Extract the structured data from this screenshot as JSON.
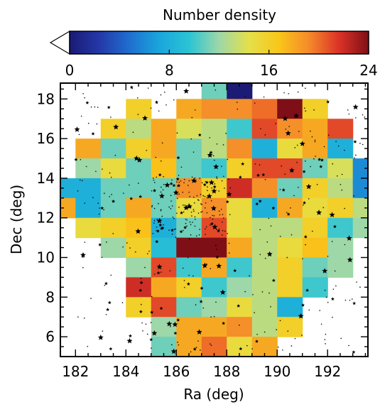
{
  "chart_data": {
    "type": "heatmap",
    "title": "",
    "xlabel": "Ra (deg)",
    "ylabel": "Dec (deg)",
    "xlim": [
      181.4,
      193.6
    ],
    "ylim": [
      5.0,
      18.8
    ],
    "xticks": [
      182,
      184,
      186,
      188,
      190,
      192
    ],
    "yticks": [
      6,
      8,
      10,
      12,
      14,
      16,
      18
    ],
    "grid": false,
    "colorbar": {
      "label": "Number density",
      "min": 0,
      "max": 24,
      "ticks": [
        0,
        8,
        16,
        24
      ],
      "colormap": "jet-like",
      "position": "top",
      "stops": [
        "#1b1a74",
        "#2438a8",
        "#1f6fd0",
        "#19a6dc",
        "#2bc4d4",
        "#9ed7a8",
        "#e4e04a",
        "#f9c619",
        "#f58a2a",
        "#dc3328",
        "#7f0f16"
      ]
    },
    "bins": {
      "ra_start": 181.4,
      "ra_width": 1.017,
      "dec_start": 18.8,
      "dec_height": 1.0,
      "rows": [
        [
          null,
          null,
          null,
          null,
          null,
          null,
          null,
          null,
          null,
          null,
          null,
          null
        ],
        [
          null,
          null,
          null,
          null,
          null,
          null,
          null,
          null,
          null,
          null,
          null,
          null
        ],
        [
          null,
          null,
          null,
          null,
          null,
          null,
          null,
          null,
          null,
          null,
          null,
          null
        ],
        [
          null,
          null,
          null,
          null,
          null,
          null,
          null,
          null,
          null,
          null,
          null,
          null
        ],
        [
          null,
          null,
          null,
          null,
          null,
          null,
          null,
          null,
          null,
          null,
          null,
          null
        ],
        [
          null,
          null,
          null,
          null,
          null,
          null,
          null,
          null,
          null,
          null,
          null,
          null
        ],
        [
          null,
          null,
          null,
          null,
          null,
          null,
          null,
          null,
          null,
          null,
          null,
          null
        ],
        [
          null,
          null,
          null,
          null,
          null,
          null,
          null,
          null,
          null,
          null,
          null,
          null
        ],
        [
          null,
          null,
          null,
          null,
          null,
          null,
          null,
          null,
          null,
          null,
          null,
          null
        ],
        [
          null,
          null,
          null,
          null,
          null,
          null,
          null,
          null,
          null,
          null,
          null,
          null
        ],
        [
          null,
          null,
          null,
          null,
          null,
          null,
          null,
          null,
          null,
          null,
          null,
          null
        ],
        [
          null,
          null,
          null,
          null,
          null,
          null,
          null,
          null,
          null,
          null,
          null,
          null
        ],
        [
          null,
          null,
          null,
          null,
          null,
          null,
          null,
          null,
          null,
          null,
          null,
          null
        ],
        [
          null,
          null,
          null,
          null,
          null,
          null,
          null,
          null,
          null,
          null,
          null,
          null
        ]
      ]
    },
    "cells": [
      [
        187.5,
        18.5,
        11
      ],
      [
        188.5,
        18.5,
        0
      ],
      [
        184.5,
        17.5,
        16
      ],
      [
        186.5,
        17.5,
        18
      ],
      [
        187.5,
        17.5,
        19
      ],
      [
        188.5,
        17.5,
        19
      ],
      [
        189.5,
        17.5,
        20
      ],
      [
        190.5,
        17.5,
        24
      ],
      [
        191.5,
        17.5,
        16
      ],
      [
        183.5,
        16.5,
        16
      ],
      [
        184.5,
        16.5,
        13
      ],
      [
        185.5,
        16.5,
        18
      ],
      [
        186.5,
        16.5,
        14
      ],
      [
        187.5,
        16.5,
        13
      ],
      [
        188.5,
        16.5,
        10
      ],
      [
        189.5,
        16.5,
        21
      ],
      [
        190.5,
        16.5,
        19
      ],
      [
        191.5,
        16.5,
        18
      ],
      [
        192.5,
        16.5,
        21
      ],
      [
        182.5,
        15.5,
        18
      ],
      [
        183.5,
        15.5,
        11
      ],
      [
        184.5,
        15.5,
        16
      ],
      [
        185.5,
        15.5,
        18
      ],
      [
        186.5,
        15.5,
        11
      ],
      [
        187.5,
        15.5,
        13
      ],
      [
        188.5,
        15.5,
        19
      ],
      [
        189.5,
        15.5,
        8
      ],
      [
        190.5,
        15.5,
        15
      ],
      [
        191.5,
        15.5,
        18
      ],
      [
        192.5,
        15.5,
        8
      ],
      [
        182.5,
        14.5,
        12
      ],
      [
        183.5,
        14.5,
        15
      ],
      [
        184.5,
        14.5,
        11
      ],
      [
        185.5,
        14.5,
        17
      ],
      [
        186.5,
        14.5,
        11
      ],
      [
        187.5,
        14.5,
        10
      ],
      [
        188.5,
        14.5,
        16
      ],
      [
        189.5,
        14.5,
        21
      ],
      [
        190.5,
        14.5,
        21
      ],
      [
        191.5,
        14.5,
        11
      ],
      [
        192.5,
        14.5,
        14
      ],
      [
        193.5,
        14.5,
        6
      ],
      [
        181.5,
        13.5,
        8
      ],
      [
        182.5,
        13.5,
        8
      ],
      [
        183.5,
        13.5,
        11
      ],
      [
        184.5,
        13.5,
        11
      ],
      [
        185.5,
        13.5,
        11
      ],
      [
        186.5,
        13.5,
        19
      ],
      [
        187.5,
        13.5,
        16
      ],
      [
        188.5,
        13.5,
        22
      ],
      [
        189.5,
        13.5,
        19
      ],
      [
        190.5,
        13.5,
        11
      ],
      [
        191.5,
        13.5,
        16
      ],
      [
        192.5,
        13.5,
        13
      ],
      [
        193.5,
        13.5,
        6
      ],
      [
        181.5,
        12.5,
        18
      ],
      [
        182.5,
        12.5,
        8
      ],
      [
        183.5,
        12.5,
        11
      ],
      [
        184.5,
        12.5,
        18
      ],
      [
        185.5,
        12.5,
        11
      ],
      [
        186.5,
        12.5,
        15
      ],
      [
        187.5,
        12.5,
        19
      ],
      [
        188.5,
        12.5,
        15
      ],
      [
        189.5,
        12.5,
        8
      ],
      [
        190.5,
        12.5,
        18
      ],
      [
        191.5,
        12.5,
        15
      ],
      [
        192.5,
        12.5,
        16
      ],
      [
        193.5,
        12.5,
        13
      ],
      [
        182.5,
        11.5,
        15
      ],
      [
        183.5,
        11.5,
        16
      ],
      [
        184.5,
        11.5,
        17
      ],
      [
        185.5,
        11.5,
        8
      ],
      [
        186.5,
        11.5,
        11
      ],
      [
        187.5,
        11.5,
        21
      ],
      [
        188.5,
        11.5,
        15
      ],
      [
        189.5,
        11.5,
        13
      ],
      [
        190.5,
        11.5,
        13
      ],
      [
        191.5,
        11.5,
        16
      ],
      [
        192.5,
        11.5,
        10
      ],
      [
        193.5,
        11.5,
        12
      ],
      [
        183.5,
        10.5,
        12
      ],
      [
        184.5,
        10.5,
        16
      ],
      [
        185.5,
        10.5,
        9
      ],
      [
        186.5,
        10.5,
        24
      ],
      [
        187.5,
        10.5,
        24
      ],
      [
        188.5,
        10.5,
        18
      ],
      [
        189.5,
        10.5,
        13
      ],
      [
        190.5,
        10.5,
        15
      ],
      [
        191.5,
        10.5,
        17
      ],
      [
        192.5,
        10.5,
        12
      ],
      [
        184.5,
        9.5,
        12
      ],
      [
        185.5,
        9.5,
        21
      ],
      [
        186.5,
        9.5,
        10
      ],
      [
        187.5,
        9.5,
        18
      ],
      [
        188.5,
        9.5,
        10
      ],
      [
        189.5,
        9.5,
        13
      ],
      [
        190.5,
        9.5,
        16
      ],
      [
        191.5,
        9.5,
        11
      ],
      [
        192.5,
        9.5,
        12
      ],
      [
        184.5,
        8.5,
        22
      ],
      [
        185.5,
        8.5,
        18
      ],
      [
        186.5,
        8.5,
        16
      ],
      [
        187.5,
        8.5,
        10
      ],
      [
        188.5,
        8.5,
        12
      ],
      [
        189.5,
        8.5,
        13
      ],
      [
        190.5,
        8.5,
        16
      ],
      [
        191.5,
        8.5,
        10
      ],
      [
        184.5,
        7.5,
        16
      ],
      [
        185.5,
        7.5,
        21
      ],
      [
        186.5,
        7.5,
        11
      ],
      [
        187.5,
        7.5,
        12
      ],
      [
        188.5,
        7.5,
        15
      ],
      [
        189.5,
        7.5,
        13
      ],
      [
        190.5,
        7.5,
        8
      ],
      [
        185.5,
        6.5,
        12
      ],
      [
        186.5,
        6.5,
        18
      ],
      [
        187.5,
        6.5,
        18
      ],
      [
        188.5,
        6.5,
        19
      ],
      [
        189.5,
        6.5,
        13
      ],
      [
        190.5,
        6.5,
        16
      ],
      [
        185.5,
        5.5,
        11
      ],
      [
        186.5,
        5.5,
        18
      ],
      [
        187.5,
        5.5,
        20
      ],
      [
        188.5,
        5.5,
        15
      ],
      [
        189.5,
        5.5,
        18
      ],
      [
        186.5,
        4.5,
        14
      ],
      [
        187.5,
        4.5,
        8
      ],
      [
        188.5,
        4.5,
        16
      ],
      [
        189.5,
        4.5,
        18
      ]
    ],
    "overlay": {
      "type": "scatter",
      "marker": "star"
    }
  }
}
